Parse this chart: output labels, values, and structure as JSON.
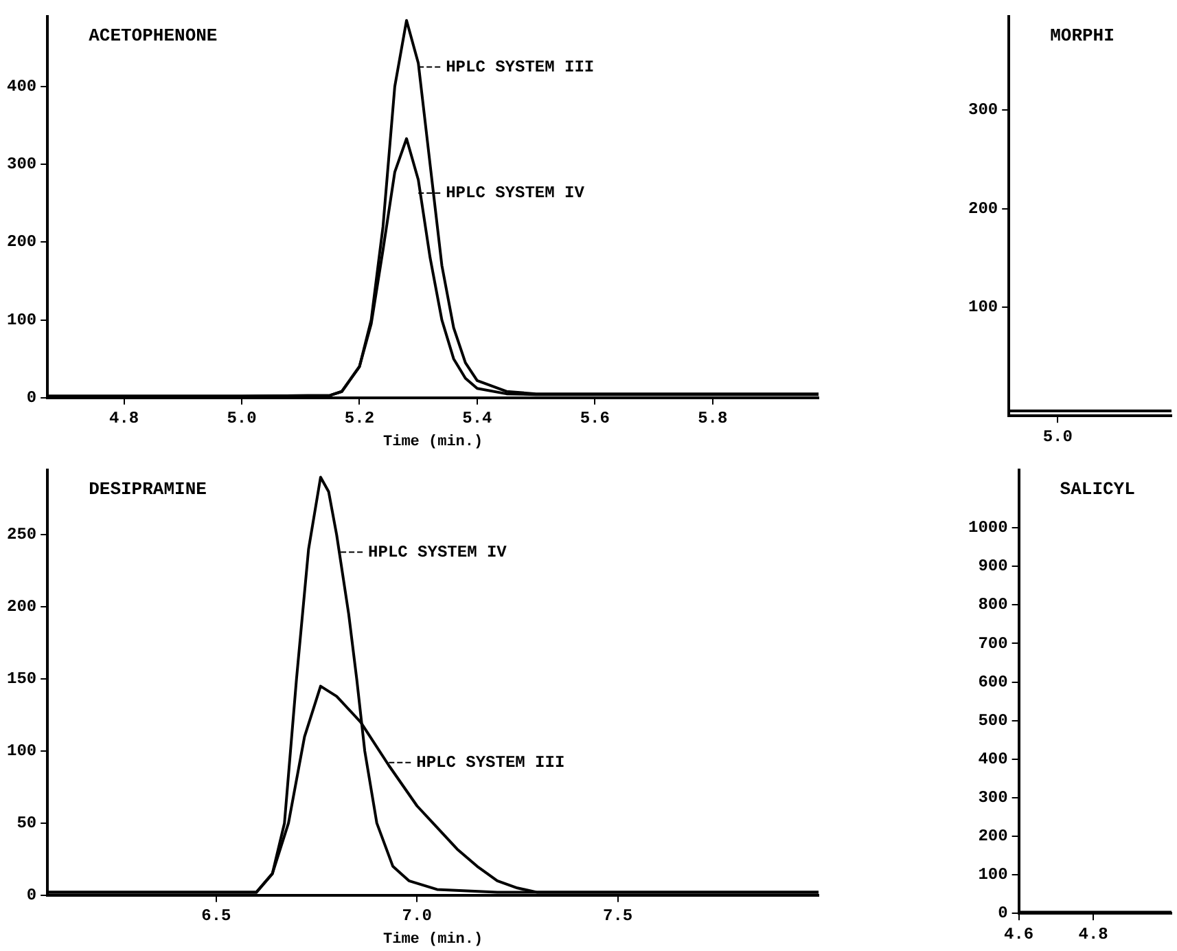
{
  "chart_data": [
    {
      "type": "line",
      "title": "ACETOPHENONE",
      "xlabel": "Time (min.)",
      "marker": "none",
      "xlim": [
        4.67,
        5.98
      ],
      "ylim": [
        0,
        490
      ],
      "xticks": [
        4.8,
        {
          "value": 5,
          "label": "5.0"
        },
        5.2,
        5.4,
        5.6,
        5.8
      ],
      "yticks": [
        0,
        100,
        200,
        300,
        400
      ],
      "series": [
        {
          "color": "#000000",
          "x": [
            4.67,
            5.0,
            5.15,
            5.17,
            5.2,
            5.22,
            5.24,
            5.26,
            5.28,
            5.3,
            5.32,
            5.34,
            5.36,
            5.38,
            5.4,
            5.45,
            5.5,
            5.98
          ],
          "values": [
            2,
            2,
            3,
            8,
            40,
            100,
            220,
            400,
            485,
            430,
            300,
            170,
            90,
            45,
            22,
            8,
            5,
            5
          ]
        },
        {
          "color": "#000000",
          "x": [
            4.67,
            5.0,
            5.15,
            5.17,
            5.2,
            5.22,
            5.24,
            5.26,
            5.28,
            5.3,
            5.32,
            5.34,
            5.36,
            5.38,
            5.4,
            5.45,
            5.5,
            5.98
          ],
          "values": [
            2,
            2,
            3,
            8,
            40,
            95,
            190,
            290,
            333,
            280,
            180,
            100,
            50,
            25,
            12,
            5,
            4,
            4
          ]
        }
      ],
      "annotations": [
        {
          "text": "HPLC SYSTEM III",
          "x": 5.3,
          "y": 425
        },
        {
          "text": "HPLC SYSTEM IV",
          "x": 5.3,
          "y": 263
        }
      ]
    },
    {
      "type": "line",
      "title": "MORPHI",
      "marker": "none",
      "ylim": [
        -10,
        395
      ],
      "categories": [
        null,
        null,
        null,
        "5.0",
        null,
        null,
        null,
        null,
        null,
        null,
        null
      ],
      "yticks": [
        100,
        200,
        300
      ],
      "series": [
        {
          "color": "#000000",
          "values": [
            -5,
            -5,
            -5,
            -5,
            -5,
            -5,
            -5,
            -5,
            -5,
            -5,
            -5
          ]
        }
      ]
    },
    {
      "type": "line",
      "title": "DESIPRAMINE",
      "xlabel": "Time (min.)",
      "marker": "none",
      "xlim": [
        6.08,
        8.0
      ],
      "ylim": [
        0,
        295
      ],
      "xticks": [
        6.5,
        {
          "value": 7,
          "label": "7.0"
        },
        7.5
      ],
      "yticks": [
        0,
        50,
        100,
        150,
        200,
        250
      ],
      "series": [
        {
          "color": "#000000",
          "x": [
            6.08,
            6.6,
            6.64,
            6.67,
            6.7,
            6.73,
            6.76,
            6.78,
            6.8,
            6.83,
            6.85,
            6.87,
            6.9,
            6.94,
            6.98,
            7.05,
            7.2,
            8.0
          ],
          "values": [
            2,
            2,
            15,
            50,
            150,
            240,
            290,
            280,
            250,
            195,
            150,
            100,
            50,
            20,
            10,
            4,
            2,
            2
          ]
        },
        {
          "color": "#000000",
          "x": [
            6.08,
            6.6,
            6.64,
            6.68,
            6.72,
            6.76,
            6.8,
            6.86,
            6.93,
            7.0,
            7.04,
            7.1,
            7.15,
            7.2,
            7.25,
            7.3,
            8.0
          ],
          "values": [
            2,
            2,
            15,
            50,
            110,
            145,
            138,
            120,
            90,
            62,
            50,
            32,
            20,
            10,
            5,
            2,
            2
          ]
        }
      ],
      "annotations": [
        {
          "text": "HPLC SYSTEM IV",
          "x": 6.81,
          "y": 238
        },
        {
          "text": "HPLC SYSTEM III",
          "x": 6.93,
          "y": 92
        }
      ]
    },
    {
      "type": "line",
      "title": "SALICYL",
      "marker": "none",
      "xlim": [
        4.6,
        5.01
      ],
      "ylim": [
        0,
        1150
      ],
      "xticks": [
        4.6,
        4.8
      ],
      "yticks": [
        0,
        100,
        200,
        300,
        400,
        500,
        600,
        700,
        800,
        900,
        1000
      ],
      "series": [
        {
          "color": "#000000",
          "x": [
            4.6,
            5.01
          ],
          "values": [
            3,
            3
          ]
        }
      ]
    }
  ]
}
